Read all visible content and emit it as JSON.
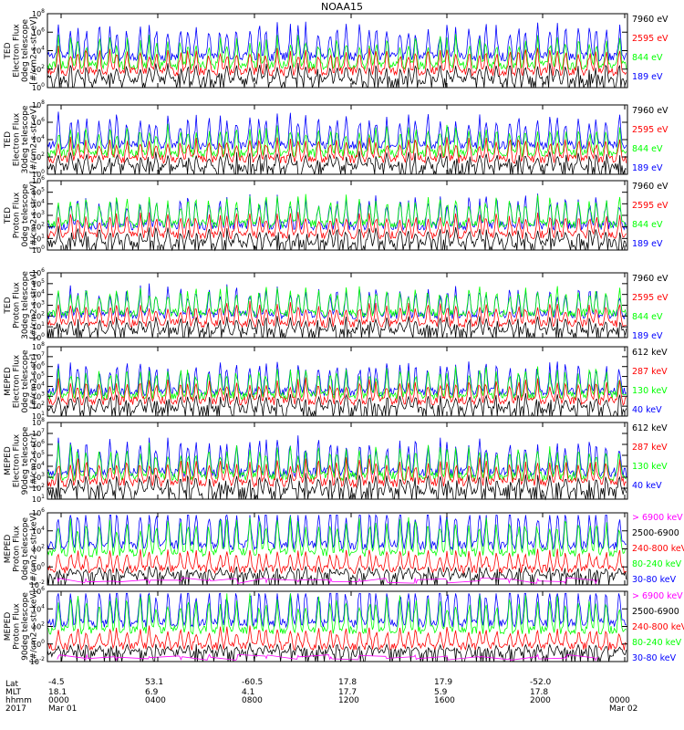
{
  "figure": {
    "title": "NOAA15",
    "colors": {
      "black": "#000000",
      "red": "#ff0000",
      "green": "#00ff00",
      "blue": "#0000ff",
      "magenta": "#ff00ff"
    }
  },
  "chart_data": [
    {
      "type": "line",
      "ylabel": [
        "TED",
        "Electron Flux",
        "0deg telescope",
        "[#/cm2-s-str-eV]"
      ],
      "yscale": "log",
      "ytick_labels": [
        "10^0",
        "10^2",
        "10^4",
        "10^6",
        "10^8"
      ],
      "ylim_exp": [
        0,
        8
      ],
      "legend": [
        {
          "label": "7960 eV",
          "color": "black"
        },
        {
          "label": "2595 eV",
          "color": "red"
        },
        {
          "label": "844 eV",
          "color": "green"
        },
        {
          "label": "189 eV",
          "color": "blue"
        }
      ]
    },
    {
      "type": "line",
      "ylabel": [
        "TED",
        "Electron Flux",
        "30deg telescope",
        "[#/cm2-s-str-eV]"
      ],
      "yscale": "log",
      "ytick_labels": [
        "10^0",
        "10^2",
        "10^4",
        "10^6",
        "10^8"
      ],
      "ylim_exp": [
        0,
        8
      ],
      "legend": [
        {
          "label": "7960 eV",
          "color": "black"
        },
        {
          "label": "2595 eV",
          "color": "red"
        },
        {
          "label": "844 eV",
          "color": "green"
        },
        {
          "label": "189 eV",
          "color": "blue"
        }
      ]
    },
    {
      "type": "line",
      "ylabel": [
        "TED",
        "Proton Flux",
        "0deg telescope",
        "[#/cm2-s-str-eV]"
      ],
      "yscale": "log",
      "ytick_labels": [
        "10^0",
        "10^1",
        "10^2",
        "10^3",
        "10^4",
        "10^5",
        "10^6"
      ],
      "ylim_exp": [
        0,
        6
      ],
      "legend": [
        {
          "label": "7960 eV",
          "color": "black"
        },
        {
          "label": "2595 eV",
          "color": "red"
        },
        {
          "label": "844 eV",
          "color": "green"
        },
        {
          "label": "189 eV",
          "color": "blue"
        }
      ]
    },
    {
      "type": "line",
      "ylabel": [
        "TED",
        "Proton Flux",
        "30deg telescope",
        "[#/cm2-s-str-eV]"
      ],
      "yscale": "log",
      "ytick_labels": [
        "10^0",
        "10^1",
        "10^2",
        "10^3",
        "10^4",
        "10^5",
        "10^6"
      ],
      "ylim_exp": [
        0,
        6
      ],
      "legend": [
        {
          "label": "7960 eV",
          "color": "black"
        },
        {
          "label": "2595 eV",
          "color": "red"
        },
        {
          "label": "844 eV",
          "color": "green"
        },
        {
          "label": "189 eV",
          "color": "blue"
        }
      ]
    },
    {
      "type": "line",
      "ylabel": [
        "MEPED",
        "Electron Flux",
        "0deg telescope",
        "[#/cm2-s-str]"
      ],
      "yscale": "log",
      "ytick_labels": [
        "10^1",
        "10^2",
        "10^3",
        "10^4",
        "10^5",
        "10^6",
        "10^7",
        "10^8"
      ],
      "ylim_exp": [
        1,
        8
      ],
      "legend": [
        {
          "label": "612 keV",
          "color": "black"
        },
        {
          "label": "287 keV",
          "color": "red"
        },
        {
          "label": "130 keV",
          "color": "green"
        },
        {
          "label": "40 keV",
          "color": "blue"
        }
      ]
    },
    {
      "type": "line",
      "ylabel": [
        "MEPED",
        "Electron Flux",
        "90deg telescope",
        "[#/cm2-s-str]"
      ],
      "yscale": "log",
      "ytick_labels": [
        "10^1",
        "10^2",
        "10^3",
        "10^4",
        "10^5",
        "10^6",
        "10^7",
        "10^8"
      ],
      "ylim_exp": [
        1,
        8
      ],
      "legend": [
        {
          "label": "612 keV",
          "color": "black"
        },
        {
          "label": "287 keV",
          "color": "red"
        },
        {
          "label": "130 keV",
          "color": "green"
        },
        {
          "label": "40 keV",
          "color": "blue"
        }
      ]
    },
    {
      "type": "line",
      "ylabel": [
        "MEPED",
        "Proton Flux",
        "0deg telescope",
        "[#/cm2-s-str-keV]"
      ],
      "yscale": "log",
      "ytick_labels": [
        "10^-2",
        "10^0",
        "10^2",
        "10^4",
        "10^6"
      ],
      "ylim_exp": [
        -2,
        6
      ],
      "legend": [
        {
          "label": "> 6900 keV",
          "color": "magenta"
        },
        {
          "label": "2500-6900",
          "color": "black"
        },
        {
          "label": "240-800 keV",
          "color": "red"
        },
        {
          "label": "80-240 keV",
          "color": "green"
        },
        {
          "label": "30-80 keV",
          "color": "blue"
        }
      ]
    },
    {
      "type": "line",
      "ylabel": [
        "MEPED",
        "Proton Flux",
        "90deg telescope",
        "[#/cm2-s-str-keV]"
      ],
      "yscale": "log",
      "ytick_labels": [
        "10^-2",
        "10^0",
        "10^2",
        "10^4",
        "10^6"
      ],
      "ylim_exp": [
        -2,
        6
      ],
      "legend": [
        {
          "label": "> 6900 keV",
          "color": "magenta"
        },
        {
          "label": "2500-6900",
          "color": "black"
        },
        {
          "label": "240-800 keV",
          "color": "red"
        },
        {
          "label": "80-240 keV",
          "color": "green"
        },
        {
          "label": "30-80 keV",
          "color": "blue"
        }
      ]
    }
  ],
  "x_axis": {
    "row_labels": [
      "Lat",
      "MLT",
      "hhmm",
      "2017"
    ],
    "columns": [
      {
        "lat": "-4.5",
        "mlt": "18.1",
        "hhmm": "0000",
        "date": "Mar 01"
      },
      {
        "lat": "53.1",
        "mlt": "6.9",
        "hhmm": "0400",
        "date": ""
      },
      {
        "lat": "-60.5",
        "mlt": "4.1",
        "hhmm": "0800",
        "date": ""
      },
      {
        "lat": "17.8",
        "mlt": "17.7",
        "hhmm": "1200",
        "date": ""
      },
      {
        "lat": "17.9",
        "mlt": "5.9",
        "hhmm": "1600",
        "date": ""
      },
      {
        "lat": "-52.0",
        "mlt": "17.8",
        "hhmm": "2000",
        "date": ""
      },
      {
        "lat": "",
        "mlt": "",
        "hhmm": "0000",
        "date": "Mar 02"
      }
    ]
  }
}
